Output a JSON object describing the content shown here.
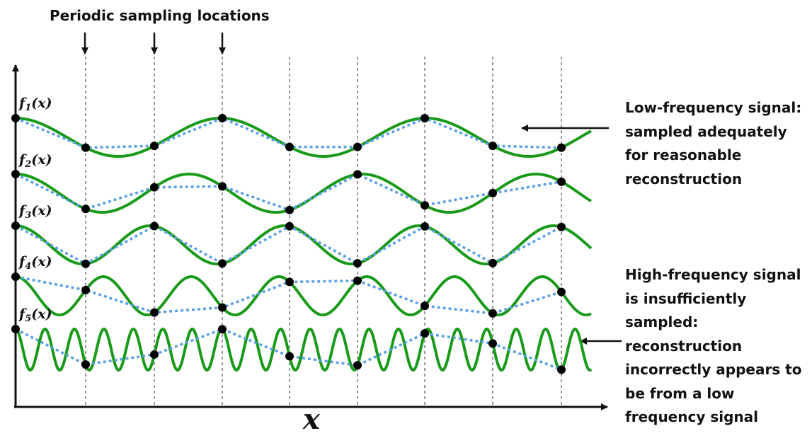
{
  "title": "Periodic sampling locations",
  "x_axis_label": "x",
  "low_annotation": {
    "lines": [
      "Low-frequency signal:",
      "sampled adequately",
      "for reasonable",
      "reconstruction"
    ]
  },
  "high_annotation": {
    "lines": [
      "High-frequency signal",
      "is insufficiently",
      "sampled:",
      "reconstruction",
      "incorrectly appears to",
      "be from a low",
      "frequency signal"
    ]
  },
  "signals": [
    {
      "label": "f",
      "sub": "1",
      "arg": "(x)"
    },
    {
      "label": "f",
      "sub": "2",
      "arg": "(x)"
    },
    {
      "label": "f",
      "sub": "3",
      "arg": "(x)"
    },
    {
      "label": "f",
      "sub": "4",
      "arg": "(x)"
    },
    {
      "label": "f",
      "sub": "5",
      "arg": "(x)"
    }
  ],
  "colors": {
    "signal": "#1a9a1a",
    "reconstruction": "#5aa0e6",
    "sample": "#000000",
    "grid": "#999999"
  }
}
